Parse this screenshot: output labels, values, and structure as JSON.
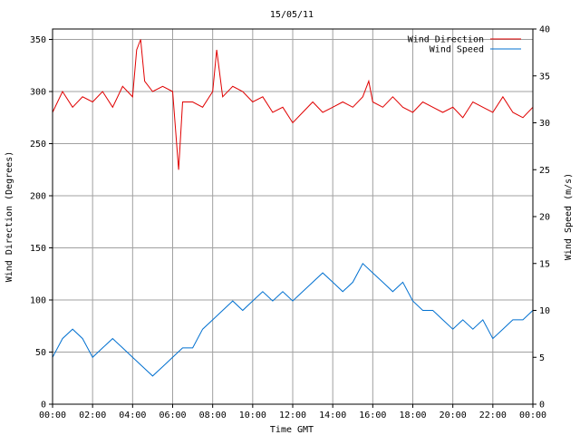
{
  "chart_data": {
    "type": "line",
    "title": "15/05/11",
    "xlabel": "Time GMT",
    "ylabel_left": "Wind Direction (Degrees)",
    "ylabel_right": "Wind Speed (m/s)",
    "x_ticks": [
      "00:00",
      "02:00",
      "04:00",
      "06:00",
      "08:00",
      "10:00",
      "12:00",
      "14:00",
      "16:00",
      "18:00",
      "20:00",
      "22:00",
      "00:00"
    ],
    "xlim_hours": [
      0,
      24
    ],
    "ylim_left": [
      0,
      360
    ],
    "y_ticks_left": [
      0,
      50,
      100,
      150,
      200,
      250,
      300,
      350
    ],
    "ylim_right": [
      0,
      40
    ],
    "y_ticks_right": [
      0,
      5,
      10,
      15,
      20,
      25,
      30,
      35,
      40
    ],
    "grid": true,
    "legend_position": "top-right",
    "series": [
      {
        "name": "Wind Direction",
        "axis": "left",
        "color": "#e00000",
        "x_hours": [
          0,
          0.5,
          1,
          1.5,
          2,
          2.5,
          3,
          3.5,
          4,
          4.2,
          4.4,
          4.6,
          5,
          5.5,
          6,
          6.3,
          6.5,
          7,
          7.5,
          8,
          8.2,
          8.5,
          9,
          9.5,
          10,
          10.5,
          11,
          11.5,
          12,
          12.5,
          13,
          13.5,
          14,
          14.5,
          15,
          15.5,
          15.8,
          16,
          16.5,
          17,
          17.5,
          18,
          18.5,
          19,
          19.5,
          20,
          20.5,
          21,
          21.5,
          22,
          22.5,
          23,
          23.5,
          24
        ],
        "values": [
          280,
          300,
          285,
          295,
          290,
          300,
          285,
          305,
          295,
          340,
          350,
          310,
          300,
          305,
          300,
          225,
          290,
          290,
          285,
          300,
          340,
          295,
          305,
          300,
          290,
          295,
          280,
          285,
          270,
          280,
          290,
          280,
          285,
          290,
          285,
          295,
          310,
          290,
          285,
          295,
          285,
          280,
          290,
          285,
          280,
          285,
          275,
          290,
          285,
          280,
          295,
          280,
          275,
          285
        ]
      },
      {
        "name": "Wind Speed",
        "axis": "right",
        "color": "#0070d0",
        "x_hours": [
          0,
          0.5,
          1,
          1.5,
          2,
          2.5,
          3,
          3.5,
          4,
          4.5,
          5,
          5.5,
          6,
          6.5,
          7,
          7.5,
          8,
          8.5,
          9,
          9.5,
          10,
          10.5,
          11,
          11.5,
          12,
          12.5,
          13,
          13.5,
          14,
          14.5,
          15,
          15.5,
          16,
          16.5,
          17,
          17.5,
          18,
          18.5,
          19,
          19.5,
          20,
          20.5,
          21,
          21.5,
          22,
          22.5,
          23,
          23.5,
          24
        ],
        "values": [
          5,
          7,
          8,
          7,
          5,
          6,
          7,
          6,
          5,
          4,
          3,
          4,
          5,
          6,
          6,
          8,
          9,
          10,
          11,
          10,
          11,
          12,
          11,
          12,
          11,
          12,
          13,
          14,
          13,
          12,
          13,
          15,
          14,
          13,
          12,
          13,
          11,
          10,
          10,
          9,
          8,
          9,
          8,
          9,
          7,
          8,
          9,
          9,
          10
        ]
      }
    ]
  }
}
